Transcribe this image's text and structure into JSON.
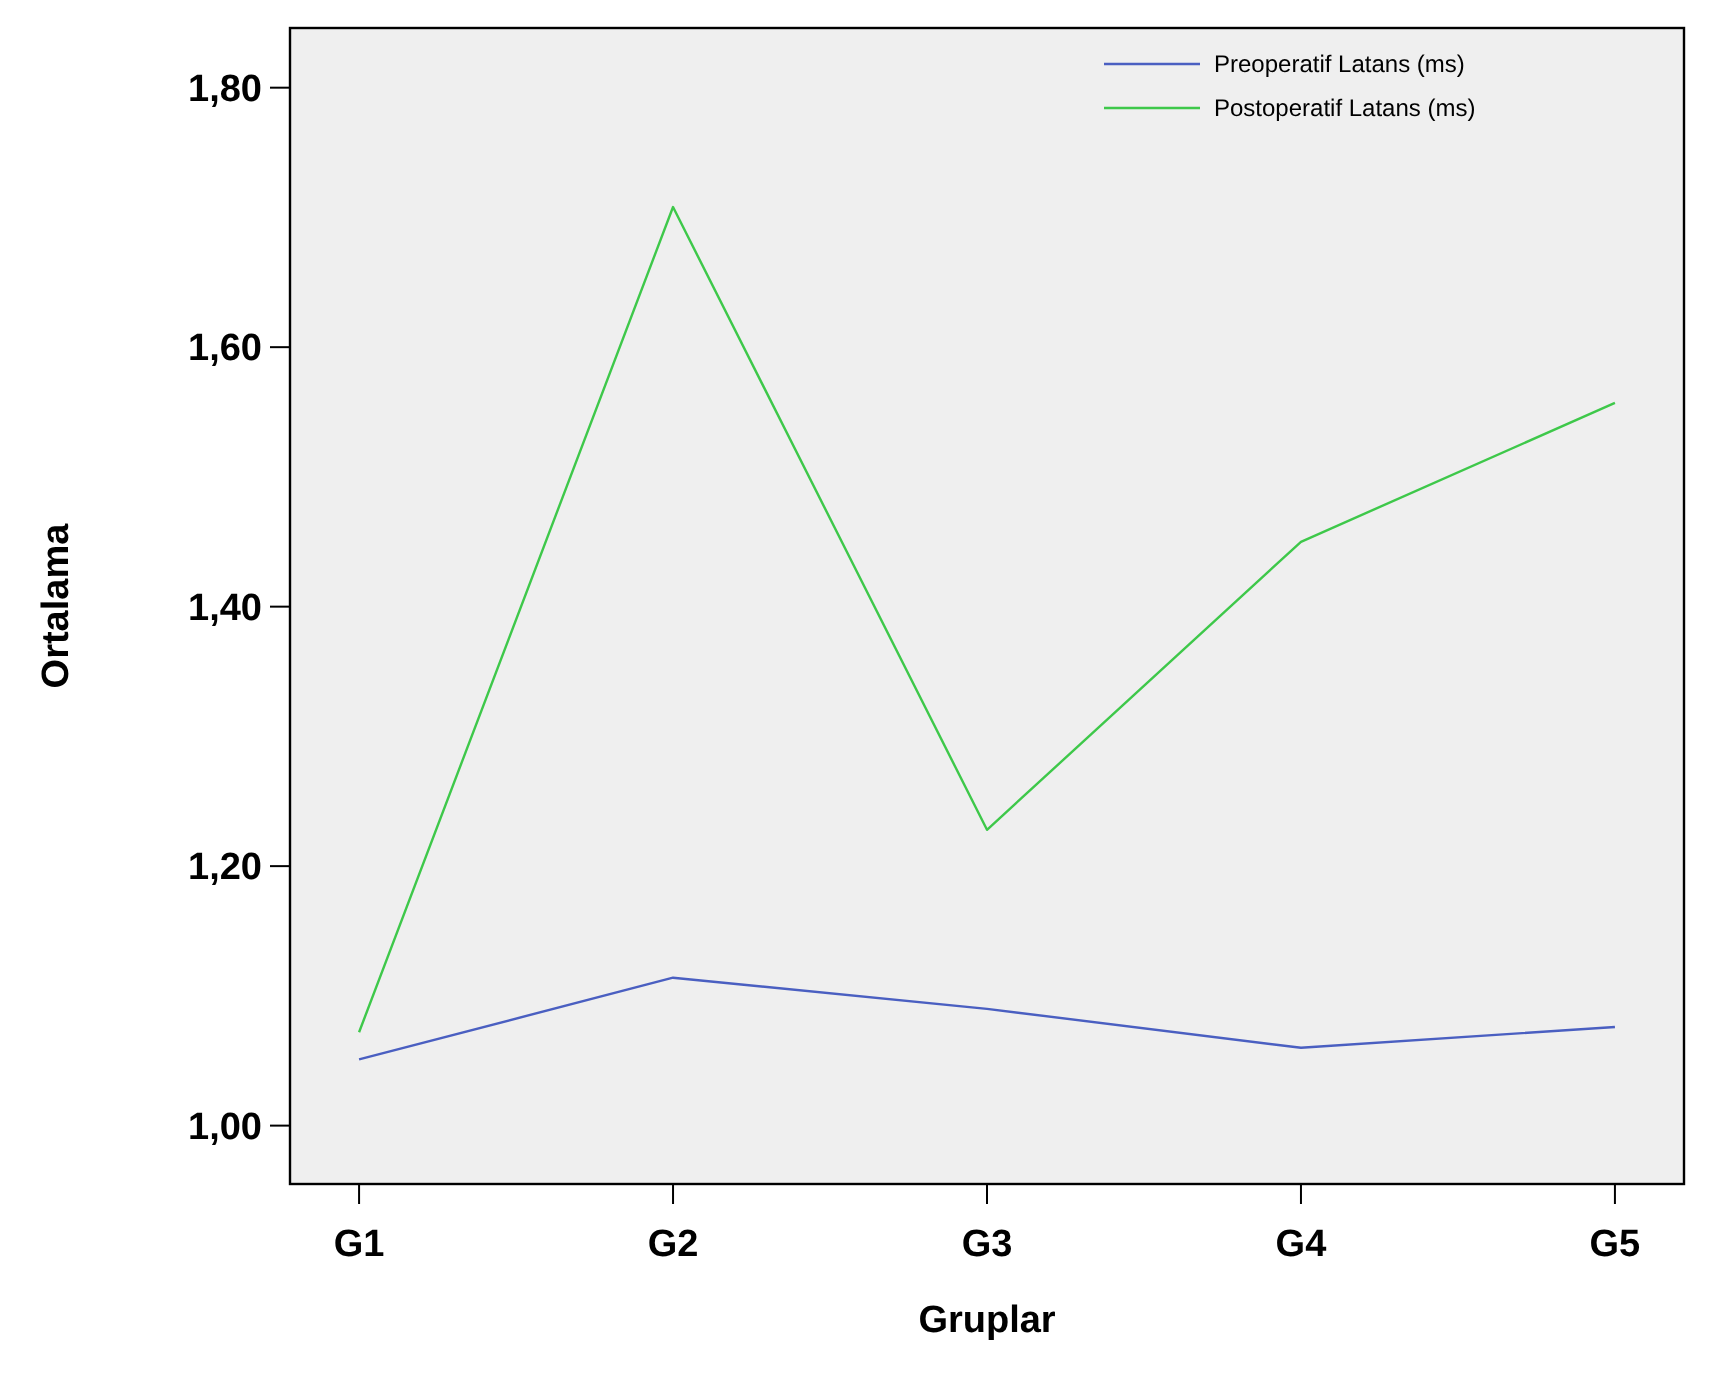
{
  "chart_data": {
    "type": "line",
    "xlabel": "Gruplar",
    "ylabel": "Ortalama",
    "categories": [
      "G1",
      "G2",
      "G3",
      "G4",
      "G5"
    ],
    "series": [
      {
        "name": "Preoperatif Latans (ms)",
        "color": "#4a5fc1",
        "values": [
          1.051,
          1.114,
          1.09,
          1.06,
          1.076
        ]
      },
      {
        "name": "Postoperatif Latans (ms)",
        "color": "#3ec84a",
        "values": [
          1.072,
          1.708,
          1.228,
          1.45,
          1.557
        ]
      }
    ],
    "ylim": [
      0.955,
      1.846
    ],
    "yticks": [
      {
        "value": 1.0,
        "label": "1,00"
      },
      {
        "value": 1.2,
        "label": "1,20"
      },
      {
        "value": 1.4,
        "label": "1,40"
      },
      {
        "value": 1.6,
        "label": "1,60"
      },
      {
        "value": 1.8,
        "label": "1,80"
      }
    ],
    "grid": false,
    "legend": "top right",
    "marker": "none",
    "line_style": "solid"
  }
}
